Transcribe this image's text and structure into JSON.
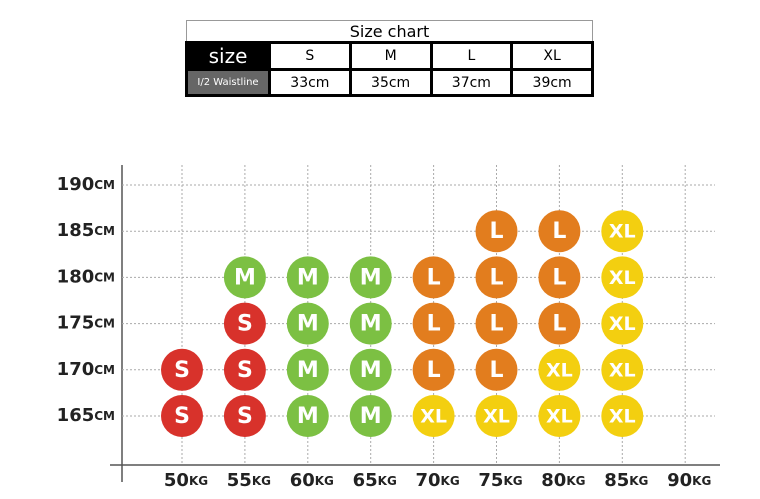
{
  "table": {
    "title": "Size chart",
    "header": [
      "size",
      "S",
      "M",
      "L",
      "XL"
    ],
    "rows": [
      [
        "I/2 Waistline",
        "33cm",
        "35cm",
        "37cm",
        "39cm"
      ]
    ]
  },
  "grid": {
    "heights": [
      {
        "value": "190",
        "unit": "CM"
      },
      {
        "value": "185",
        "unit": "CM"
      },
      {
        "value": "180",
        "unit": "CM"
      },
      {
        "value": "175",
        "unit": "CM"
      },
      {
        "value": "170",
        "unit": "CM"
      },
      {
        "value": "165",
        "unit": "CM"
      }
    ],
    "weights": [
      {
        "value": "50",
        "unit": "KG"
      },
      {
        "value": "55",
        "unit": "KG"
      },
      {
        "value": "60",
        "unit": "KG"
      },
      {
        "value": "65",
        "unit": "KG"
      },
      {
        "value": "70",
        "unit": "KG"
      },
      {
        "value": "75",
        "unit": "KG"
      },
      {
        "value": "80",
        "unit": "KG"
      },
      {
        "value": "85",
        "unit": "KG"
      },
      {
        "value": "90",
        "unit": "KG"
      }
    ],
    "colors": {
      "S": "#d8322b",
      "M": "#7cc043",
      "L": "#e27d1e",
      "XL": "#f3cf10"
    },
    "cells": [
      [
        null,
        null,
        null,
        null,
        null,
        null,
        null,
        null,
        null
      ],
      [
        null,
        null,
        null,
        null,
        null,
        "L",
        "L",
        "XL",
        null
      ],
      [
        null,
        "M",
        "M",
        "M",
        "L",
        "L",
        "L",
        "XL",
        null
      ],
      [
        null,
        "S",
        "M",
        "M",
        "L",
        "L",
        "L",
        "XL",
        null
      ],
      [
        "S",
        "S",
        "M",
        "M",
        "L",
        "L",
        "XL",
        "XL",
        null
      ],
      [
        "S",
        "S",
        "M",
        "M",
        "XL",
        "XL",
        "XL",
        "XL",
        null
      ]
    ]
  }
}
